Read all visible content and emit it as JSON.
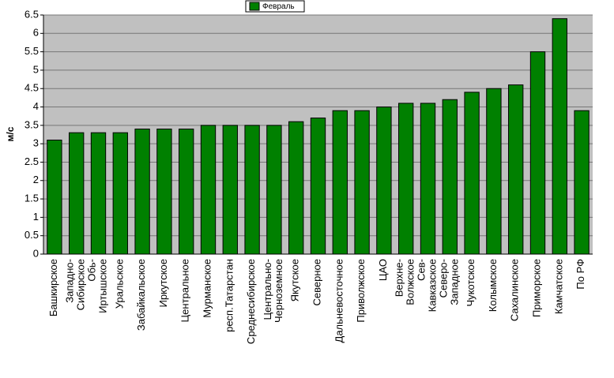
{
  "chart_data": {
    "type": "bar",
    "legend_label": "Февраль",
    "y_axis_label": "м/с",
    "categories": [
      "Башкирское",
      "Западно-Сибирское",
      "Обь-Иртышское",
      "Уральское",
      "Забайкальское",
      "Иркутское",
      "Центральное",
      "Мурманское",
      "респ.Татарстан",
      "Среднесибирское",
      "Центрально-Черноземное",
      "Якутское",
      "Северное",
      "Дальневосточное",
      "Приволжское",
      "ЦАО",
      "Верхне-Волжское",
      "Сев-Кавказское",
      "Северо-Западное",
      "Чукотское",
      "Колымское",
      "Сахалинское",
      "Приморское",
      "Камчатское",
      "По РФ"
    ],
    "values": [
      3.1,
      3.3,
      3.3,
      3.3,
      3.4,
      3.4,
      3.4,
      3.5,
      3.5,
      3.5,
      3.5,
      3.6,
      3.7,
      3.9,
      3.9,
      4.0,
      4.1,
      4.1,
      4.2,
      4.4,
      4.5,
      4.6,
      5.5,
      6.4,
      3.9
    ],
    "color": "#008000",
    "ylim": [
      0,
      6.5
    ],
    "yticks": [
      0,
      0.5,
      1,
      1.5,
      2,
      2.5,
      3,
      3.5,
      4,
      4.5,
      5,
      5.5,
      6,
      6.5
    ],
    "grid": true
  }
}
